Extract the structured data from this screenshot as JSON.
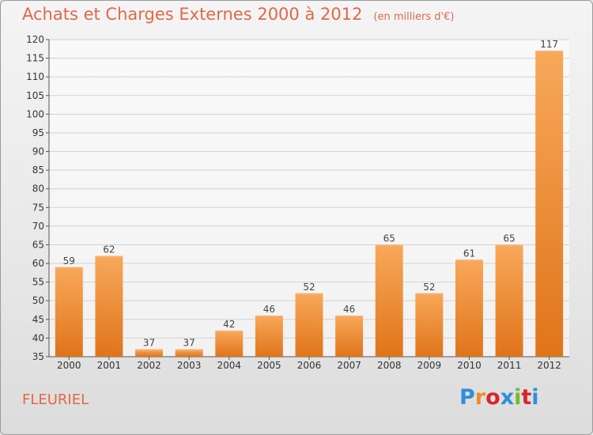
{
  "chart_data": {
    "type": "bar",
    "title": "Achats et Charges Externes 2000 à 2012",
    "subtitle": "(en milliers d'€)",
    "categories": [
      "2000",
      "2001",
      "2002",
      "2003",
      "2004",
      "2005",
      "2006",
      "2007",
      "2008",
      "2009",
      "2010",
      "2011",
      "2012"
    ],
    "values": [
      59,
      62,
      37,
      37,
      42,
      46,
      52,
      46,
      65,
      52,
      61,
      65,
      117
    ],
    "ylim": [
      35,
      120
    ],
    "yticks": [
      35,
      40,
      45,
      50,
      55,
      60,
      65,
      70,
      75,
      80,
      85,
      90,
      95,
      100,
      105,
      110,
      115,
      120
    ],
    "grid": true,
    "bar_color": "#f08c2c"
  },
  "footer": {
    "place": "FLEURIEL",
    "logo": "Proxiti"
  },
  "logo_colors": [
    "#2f8fd8",
    "#f08a24",
    "#d8262a",
    "#2f8fd8",
    "#7cb832",
    "#d8262a",
    "#2f8fd8"
  ]
}
